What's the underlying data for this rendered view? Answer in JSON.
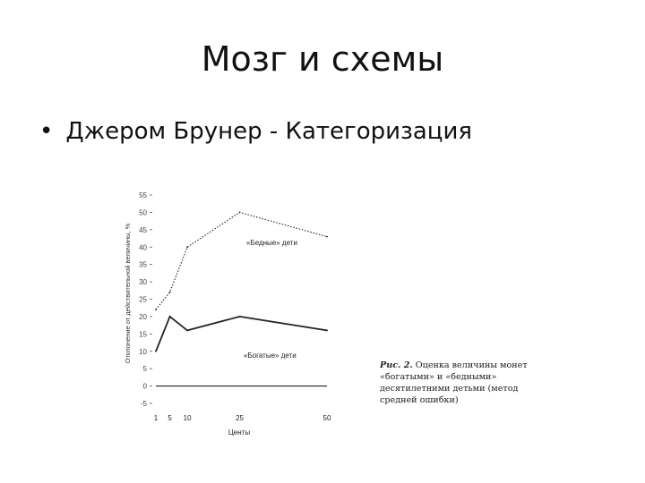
{
  "slide": {
    "title": "Мозг и схемы",
    "bullet_symbol": "•",
    "bullet_text": "Джером Брунер - Категоризация"
  },
  "caption": {
    "label": "Рис. 2.",
    "text": " Оценка величины монет «богатыми» и «бедными» десятилетними детьми (метод средней ошибки)"
  },
  "chart_data": {
    "type": "line",
    "x": [
      1,
      5,
      10,
      25,
      50
    ],
    "x_ticks": [
      1,
      5,
      10,
      25,
      50
    ],
    "xlabel": "Центы",
    "ylabel": "Отклонение от действительной величины, %",
    "ylim": [
      -5,
      55
    ],
    "y_ticks": [
      -5,
      0,
      5,
      10,
      15,
      20,
      25,
      30,
      35,
      40,
      45,
      50,
      55
    ],
    "grid": false,
    "series": [
      {
        "name": "«Бедные» дети",
        "values": [
          22,
          27,
          40,
          50,
          43
        ],
        "style": "dotted"
      },
      {
        "name": "«Богатые» дети",
        "values": [
          10,
          20,
          16,
          20,
          16
        ],
        "style": "solid"
      }
    ],
    "baseline": 0,
    "colors": {
      "axis": "#555555",
      "line": "#222222"
    }
  }
}
